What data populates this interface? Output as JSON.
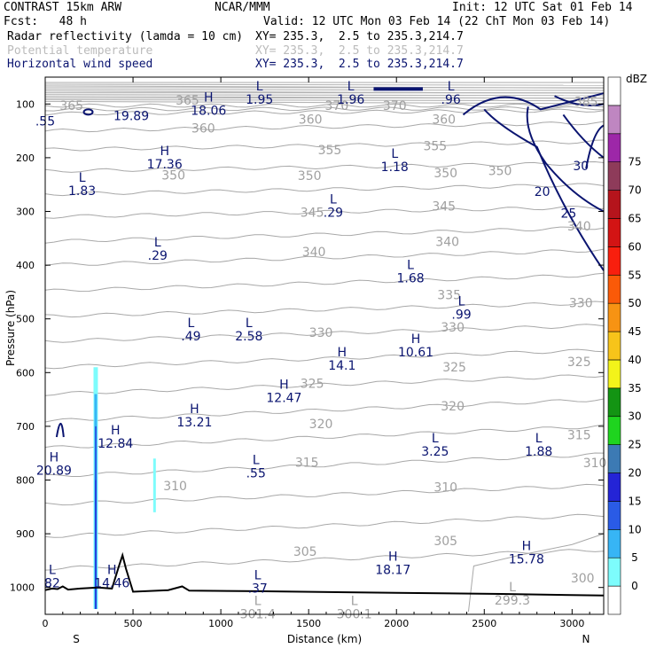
{
  "header": {
    "model": "CONTRAST 15km ARW",
    "org": "NCAR/MMM",
    "init": "Init: 12 UTC Sat 01 Feb 14",
    "fcst": "Fcst:   48 h",
    "valid": "Valid: 12 UTC Mon 03 Feb 14 (22 ChT Mon 03 Feb 14)",
    "fields": [
      {
        "label": "Radar reflectivity (lamda = 10 cm)",
        "xy": "XY= 235.3,  2.5 to 235.3,214.7"
      },
      {
        "label": "Potential temperature",
        "xy": "XY= 235.3,  2.5 to 235.3,214.7"
      },
      {
        "label": "Horizontal wind speed",
        "xy": "XY= 235.3,  2.5 to 235.3,214.7"
      }
    ]
  },
  "chart_data": {
    "type": "cross-section",
    "xlabel": "Distance (km)",
    "ylabel": "Pressure (hPa)",
    "xlim": [
      0,
      3180
    ],
    "ylim": [
      1050,
      50
    ],
    "x_ticks": [
      0,
      500,
      1000,
      1500,
      2000,
      2500,
      3000
    ],
    "y_ticks": [
      100,
      200,
      300,
      400,
      500,
      600,
      700,
      800,
      900,
      1000
    ],
    "left_endpoint": "S",
    "right_endpoint": "N",
    "colorbar": {
      "title": "dBZ",
      "levels": [
        0,
        5,
        10,
        15,
        20,
        25,
        30,
        35,
        40,
        45,
        50,
        55,
        60,
        65,
        70,
        75
      ],
      "colors": [
        "#ffffff",
        "#7dfcfc",
        "#37b5f5",
        "#2a5be6",
        "#2424d6",
        "#3c7ab4",
        "#1fd41f",
        "#139413",
        "#f3f31a",
        "#f7c41a",
        "#f79313",
        "#fa5a08",
        "#f81f0e",
        "#d31414",
        "#b5141c",
        "#8e3b5a",
        "#9d27a8",
        "#bf86c1",
        "#ffffff"
      ]
    },
    "theta_labels": [
      {
        "x": 150,
        "p": 103,
        "t": "365"
      },
      {
        "x": 810,
        "p": 93,
        "t": "365"
      },
      {
        "x": 1990,
        "p": 103,
        "t": "370"
      },
      {
        "x": 1660,
        "p": 103,
        "t": "370"
      },
      {
        "x": 3080,
        "p": 95,
        "t": "385"
      },
      {
        "x": 900,
        "p": 145,
        "t": "360"
      },
      {
        "x": 1510,
        "p": 128,
        "t": "360"
      },
      {
        "x": 2270,
        "p": 128,
        "t": "360"
      },
      {
        "x": 1620,
        "p": 185,
        "t": "355"
      },
      {
        "x": 2220,
        "p": 178,
        "t": "355"
      },
      {
        "x": 730,
        "p": 232,
        "t": "350"
      },
      {
        "x": 1505,
        "p": 233,
        "t": "350"
      },
      {
        "x": 2280,
        "p": 228,
        "t": "350"
      },
      {
        "x": 2590,
        "p": 224,
        "t": "350"
      },
      {
        "x": 1520,
        "p": 302,
        "t": "345"
      },
      {
        "x": 2270,
        "p": 290,
        "t": "345"
      },
      {
        "x": 3040,
        "p": 327,
        "t": "340"
      },
      {
        "x": 1530,
        "p": 375,
        "t": "340"
      },
      {
        "x": 2290,
        "p": 356,
        "t": "340"
      },
      {
        "x": 2300,
        "p": 455,
        "t": "335"
      },
      {
        "x": 3050,
        "p": 470,
        "t": "330"
      },
      {
        "x": 1570,
        "p": 525,
        "t": "330"
      },
      {
        "x": 2320,
        "p": 515,
        "t": "330"
      },
      {
        "x": 3040,
        "p": 580,
        "t": "325"
      },
      {
        "x": 1520,
        "p": 620,
        "t": "325"
      },
      {
        "x": 2330,
        "p": 590,
        "t": "325"
      },
      {
        "x": 1570,
        "p": 695,
        "t": "320"
      },
      {
        "x": 2320,
        "p": 662,
        "t": "320"
      },
      {
        "x": 3040,
        "p": 716,
        "t": "315"
      },
      {
        "x": 1490,
        "p": 767,
        "t": "315"
      },
      {
        "x": 3130,
        "p": 768,
        "t": "310"
      },
      {
        "x": 740,
        "p": 811,
        "t": "310"
      },
      {
        "x": 2280,
        "p": 813,
        "t": "310"
      },
      {
        "x": 1480,
        "p": 933,
        "t": "305"
      },
      {
        "x": 2280,
        "p": 913,
        "t": "305"
      },
      {
        "x": 3060,
        "p": 982,
        "t": "300"
      }
    ],
    "wind_contour_labels": [
      {
        "x": 3050,
        "p": 215,
        "t": "30"
      },
      {
        "x": 2830,
        "p": 263,
        "t": "20"
      },
      {
        "x": 2980,
        "p": 303,
        "t": "25"
      }
    ],
    "extrema": [
      {
        "x": 1220,
        "p": 80,
        "kind": "L",
        "value": "1.95"
      },
      {
        "x": 1740,
        "p": 80,
        "kind": "L",
        "value": "1.96"
      },
      {
        "x": 2310,
        "p": 80,
        "kind": "L",
        "value": ".96"
      },
      {
        "x": 0,
        "p": 120,
        "kind": "",
        "value": ".55"
      },
      {
        "x": 490,
        "p": 110,
        "kind": "",
        "value": "19.89"
      },
      {
        "x": 930,
        "p": 100,
        "kind": "H",
        "value": "18.06"
      },
      {
        "x": 680,
        "p": 200,
        "kind": "H",
        "value": "17.36"
      },
      {
        "x": 1990,
        "p": 205,
        "kind": "L",
        "value": "1.18"
      },
      {
        "x": 210,
        "p": 250,
        "kind": "L",
        "value": "1.83"
      },
      {
        "x": 1640,
        "p": 290,
        "kind": "L",
        "value": ".29"
      },
      {
        "x": 640,
        "p": 370,
        "kind": "L",
        "value": ".29"
      },
      {
        "x": 2080,
        "p": 412,
        "kind": "L",
        "value": "1.68"
      },
      {
        "x": 2370,
        "p": 480,
        "kind": "L",
        "value": ".99"
      },
      {
        "x": 830,
        "p": 520,
        "kind": "L",
        "value": ".49"
      },
      {
        "x": 1160,
        "p": 520,
        "kind": "L",
        "value": "2.58"
      },
      {
        "x": 2110,
        "p": 550,
        "kind": "H",
        "value": "10.61"
      },
      {
        "x": 1690,
        "p": 575,
        "kind": "H",
        "value": "14.1"
      },
      {
        "x": 1360,
        "p": 635,
        "kind": "H",
        "value": "12.47"
      },
      {
        "x": 850,
        "p": 680,
        "kind": "H",
        "value": "13.21"
      },
      {
        "x": 400,
        "p": 720,
        "kind": "H",
        "value": "12.84"
      },
      {
        "x": 2220,
        "p": 735,
        "kind": "L",
        "value": "3.25"
      },
      {
        "x": 2810,
        "p": 735,
        "kind": "L",
        "value": "1.88"
      },
      {
        "x": 50,
        "p": 770,
        "kind": "H",
        "value": "20.89"
      },
      {
        "x": 1200,
        "p": 775,
        "kind": "L",
        "value": ".55"
      },
      {
        "x": 2740,
        "p": 935,
        "kind": "H",
        "value": "15.78"
      },
      {
        "x": 1980,
        "p": 955,
        "kind": "H",
        "value": "18.17"
      },
      {
        "x": 380,
        "p": 980,
        "kind": "H",
        "value": "14.46"
      },
      {
        "x": 40,
        "p": 980,
        "kind": "L",
        "value": "82"
      },
      {
        "x": 1210,
        "p": 990,
        "kind": "L",
        "value": ".37"
      },
      {
        "x": 2660,
        "p": 1012,
        "kind": "L",
        "value": "299.3"
      },
      {
        "x": 1210,
        "p": 1038,
        "kind": "L",
        "value": "301.4"
      },
      {
        "x": 1760,
        "p": 1038,
        "kind": "L",
        "value": "300.1"
      }
    ]
  }
}
